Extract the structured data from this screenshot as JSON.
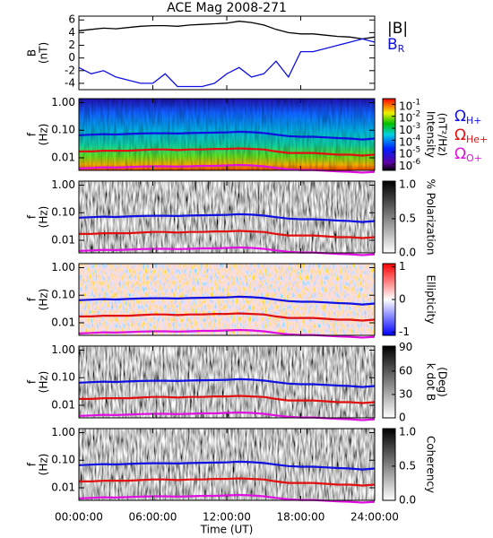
{
  "title": "ACE Mag 2008-271",
  "x_axis": {
    "label": "Time (UT)",
    "xlim": [
      0,
      24
    ],
    "xticks": [
      {
        "value": 0,
        "label": "00:00:00"
      },
      {
        "value": 6,
        "label": "06:00:00"
      },
      {
        "value": 12,
        "label": "12:00:00"
      },
      {
        "value": 18,
        "label": "18:00:00"
      },
      {
        "value": 24,
        "label": "24:00:00"
      }
    ]
  },
  "gyro": {
    "x": [
      0,
      1,
      2,
      3,
      4,
      5,
      6,
      7,
      8,
      9,
      10,
      11,
      12,
      13,
      14,
      15,
      16,
      17,
      18,
      19,
      20,
      21,
      22,
      23,
      24
    ],
    "series": [
      {
        "name": "Ω",
        "subscript": "H+",
        "color": "#1010e0",
        "values": [
          0.066,
          0.069,
          0.072,
          0.07,
          0.073,
          0.076,
          0.078,
          0.078,
          0.076,
          0.079,
          0.081,
          0.082,
          0.084,
          0.088,
          0.085,
          0.079,
          0.069,
          0.061,
          0.058,
          0.058,
          0.055,
          0.052,
          0.05,
          0.046,
          0.05
        ]
      },
      {
        "name": "Ω",
        "subscript": "He+",
        "color": "#e01010",
        "values": [
          0.017,
          0.017,
          0.018,
          0.018,
          0.018,
          0.019,
          0.02,
          0.02,
          0.019,
          0.02,
          0.02,
          0.021,
          0.021,
          0.022,
          0.021,
          0.02,
          0.017,
          0.015,
          0.015,
          0.015,
          0.014,
          0.013,
          0.013,
          0.012,
          0.013
        ]
      },
      {
        "name": "Ω",
        "subscript": "O+",
        "color": "#e010e0",
        "values": [
          0.0041,
          0.0043,
          0.0045,
          0.0044,
          0.0046,
          0.0048,
          0.0049,
          0.0049,
          0.0048,
          0.0049,
          0.0051,
          0.0051,
          0.0053,
          0.0055,
          0.0053,
          0.0049,
          0.0043,
          0.0038,
          0.0036,
          0.0036,
          0.0034,
          0.0032,
          0.0031,
          0.0029,
          0.0031
        ]
      }
    ]
  },
  "chart_data": [
    {
      "type": "line",
      "ylabel": [
        "B",
        "(nT)"
      ],
      "ylim": [
        -5,
        6.6
      ],
      "yticks": [
        -4,
        -2,
        0,
        2,
        4,
        6
      ],
      "x": [
        0,
        1,
        2,
        3,
        4,
        5,
        6,
        7,
        8,
        9,
        10,
        11,
        12,
        13,
        14,
        15,
        16,
        17,
        18,
        19,
        20,
        21,
        22,
        23,
        24
      ],
      "series": [
        {
          "name": "|B|",
          "color": "#000000",
          "values": [
            4.3,
            4.5,
            4.7,
            4.6,
            4.8,
            5.0,
            5.1,
            5.1,
            5.0,
            5.2,
            5.3,
            5.4,
            5.5,
            5.8,
            5.6,
            5.2,
            4.5,
            4.0,
            3.8,
            3.8,
            3.6,
            3.4,
            3.3,
            3.0,
            3.3
          ]
        },
        {
          "name": "B",
          "subscript": "R",
          "color": "#1010e0",
          "values": [
            -1.5,
            -2.5,
            -2.0,
            -3.0,
            -3.5,
            -4.0,
            -4.0,
            -2.5,
            -4.5,
            -4.5,
            -4.5,
            -4.0,
            -2.5,
            -1.5,
            -3.0,
            -2.5,
            -0.5,
            -3.0,
            1.0,
            1.0,
            1.5,
            2.0,
            2.5,
            3.0,
            2.5
          ]
        }
      ]
    },
    {
      "type": "spectrogram",
      "style": "rainbow",
      "ylabel": [
        "f",
        "(Hz)"
      ],
      "log_y": true,
      "ylim": [
        0.0035,
        1.4
      ],
      "yticks": [
        {
          "value": 0.01,
          "label": "0.01"
        },
        {
          "value": 0.1,
          "label": "0.10"
        },
        {
          "value": 1,
          "label": "1.00"
        }
      ],
      "colorbar": {
        "title": [
          "Intensity",
          "(nT²/Hz)"
        ],
        "log": true,
        "clim": [
          3e-07,
          0.3
        ],
        "ticks": [
          {
            "value": 0.1,
            "label": "10",
            "exponent": "-1"
          },
          {
            "value": 0.01,
            "label": "10",
            "exponent": "-2"
          },
          {
            "value": 0.001,
            "label": "10",
            "exponent": "-3"
          },
          {
            "value": 0.0001,
            "label": "10",
            "exponent": "-4"
          },
          {
            "value": 1e-05,
            "label": "10",
            "exponent": "-5"
          },
          {
            "value": 1e-06,
            "label": "10",
            "exponent": "-6"
          }
        ]
      }
    },
    {
      "type": "spectrogram",
      "style": "gray",
      "ylabel": [
        "f",
        "(Hz)"
      ],
      "log_y": true,
      "ylim": [
        0.0035,
        1.4
      ],
      "yticks": [
        {
          "value": 0.01,
          "label": "0.01"
        },
        {
          "value": 0.1,
          "label": "0.10"
        },
        {
          "value": 1,
          "label": "1.00"
        }
      ],
      "colorbar": {
        "title": [
          "% Polarization"
        ],
        "log": false,
        "clim": [
          0,
          1.05
        ],
        "ticks": [
          {
            "value": 0,
            "label": "0.0"
          },
          {
            "value": 0.5,
            "label": "0.5"
          },
          {
            "value": 1,
            "label": "1.0"
          }
        ]
      }
    },
    {
      "type": "spectrogram",
      "style": "redblue",
      "ylabel": [
        "f",
        "(Hz)"
      ],
      "log_y": true,
      "ylim": [
        0.0035,
        1.4
      ],
      "yticks": [
        {
          "value": 0.01,
          "label": "0.01"
        },
        {
          "value": 0.1,
          "label": "0.10"
        },
        {
          "value": 1,
          "label": "1.00"
        }
      ],
      "colorbar": {
        "title": [
          "Ellipticity"
        ],
        "log": false,
        "clim": [
          -1.1,
          1.1
        ],
        "ticks": [
          -1,
          0,
          1
        ]
      }
    },
    {
      "type": "spectrogram",
      "style": "gray",
      "ylabel": [
        "f",
        "(Hz)"
      ],
      "log_y": true,
      "ylim": [
        0.0035,
        1.4
      ],
      "yticks": [
        {
          "value": 0.01,
          "label": "0.01"
        },
        {
          "value": 0.1,
          "label": "0.10"
        },
        {
          "value": 1,
          "label": "1.00"
        }
      ],
      "colorbar": {
        "title": [
          "k dot B",
          "(Deg)"
        ],
        "log": false,
        "clim": [
          0,
          92
        ],
        "ticks": [
          0,
          30,
          60,
          90
        ]
      }
    },
    {
      "type": "spectrogram",
      "style": "gray",
      "ylabel": [
        "f",
        "(Hz)"
      ],
      "log_y": true,
      "ylim": [
        0.0035,
        1.4
      ],
      "yticks": [
        {
          "value": 0.01,
          "label": "0.01"
        },
        {
          "value": 0.1,
          "label": "0.10"
        },
        {
          "value": 1,
          "label": "1.00"
        }
      ],
      "colorbar": {
        "title": [
          "Coherency"
        ],
        "log": false,
        "clim": [
          0,
          1.05
        ],
        "ticks": [
          {
            "value": 0,
            "label": "0.0"
          },
          {
            "value": 0.5,
            "label": "0.5"
          },
          {
            "value": 1,
            "label": "1.0"
          }
        ]
      }
    }
  ]
}
